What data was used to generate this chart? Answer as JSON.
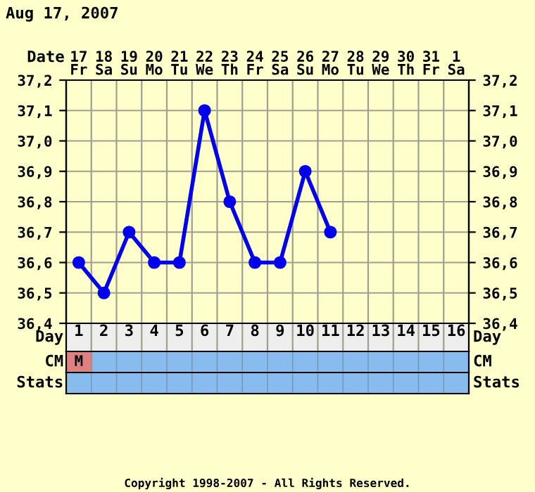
{
  "chart_data": {
    "type": "line",
    "title": "Aug 17, 2007",
    "xlabel": "Day",
    "x2label": "Date",
    "categories": [
      "1",
      "2",
      "3",
      "4",
      "5",
      "6",
      "7",
      "8",
      "9",
      "10",
      "11",
      "12",
      "13",
      "14",
      "15",
      "16"
    ],
    "series": [
      {
        "color": "#0000ee",
        "values": [
          36.6,
          36.5,
          36.7,
          36.6,
          36.6,
          37.1,
          36.8,
          36.6,
          36.6,
          36.9,
          36.7,
          null,
          null,
          null,
          null,
          null
        ]
      }
    ],
    "ylim": [
      36.4,
      37.2
    ],
    "yticks": [
      {
        "value": 36.4,
        "label": "36,4"
      },
      {
        "value": 36.5,
        "label": "36,5"
      },
      {
        "value": 36.6,
        "label": "36,6"
      },
      {
        "value": 36.7,
        "label": "36,7"
      },
      {
        "value": 36.8,
        "label": "36,8"
      },
      {
        "value": 36.9,
        "label": "36,9"
      },
      {
        "value": 37.0,
        "label": "37,0"
      },
      {
        "value": 37.1,
        "label": "37,1"
      },
      {
        "value": 37.2,
        "label": "37,2"
      }
    ],
    "y2lim": [
      36.4,
      37.2
    ],
    "y2ticks": [
      {
        "value": 36.4,
        "label": "36,4"
      },
      {
        "value": 36.5,
        "label": "36,5"
      },
      {
        "value": 36.6,
        "label": "36,6"
      },
      {
        "value": 36.7,
        "label": "36,7"
      },
      {
        "value": 36.8,
        "label": "36,8"
      },
      {
        "value": 36.9,
        "label": "36,9"
      },
      {
        "value": 37.0,
        "label": "37,0"
      },
      {
        "value": 37.1,
        "label": "37,1"
      },
      {
        "value": 37.2,
        "label": "37,2"
      }
    ],
    "annotations": [
      "CM",
      "Stats",
      "M",
      "Copyright 1998-2007 - All Rights Reserved.",
      "17\nFr",
      "18\nSa",
      "19\nSu",
      "20\nMo",
      "21\nTu",
      "22\nWe",
      "23\nTh",
      "24\nFr",
      "25\nSa",
      "26\nSu",
      "27\nMo",
      "28\nTu",
      "29\nWe",
      "30\nTh",
      "31\nFr",
      "1\nSa"
    ],
    "marker": "circle",
    "line_style": "solid",
    "grid": true
  }
}
